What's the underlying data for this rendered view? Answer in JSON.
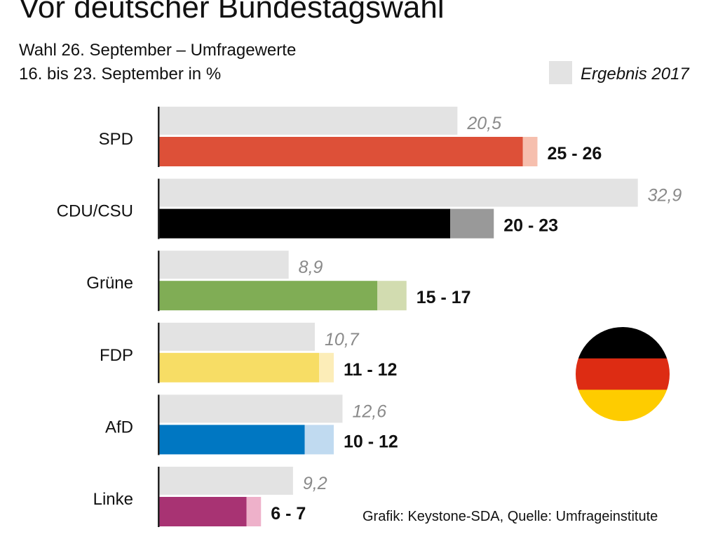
{
  "chart_data": {
    "type": "bar",
    "title": "Vor deutscher Bundestagswahl",
    "subtitle": [
      "Wahl 26. September – Umfragewerte",
      "16. bis 23. September in %"
    ],
    "legend": {
      "label": "Ergebnis 2017",
      "color": "#e3e3e3",
      "placement": "top-right"
    },
    "source": "Grafik: Keystone-SDA, Quelle: Umfrageinstitute",
    "xlim": [
      0,
      33
    ],
    "categories": [
      "SPD",
      "CDU/CSU",
      "Grüne",
      "FDP",
      "AfD",
      "Linke"
    ],
    "result_2017": [
      20.5,
      32.9,
      8.9,
      10.7,
      12.6,
      9.2
    ],
    "result_2017_labels": [
      "20,5",
      "32,9",
      "8,9",
      "10,7",
      "12,6",
      "9,2"
    ],
    "poll_low": [
      25,
      20,
      15,
      11,
      10,
      6
    ],
    "poll_high": [
      26,
      23,
      17,
      12,
      12,
      7
    ],
    "poll_labels": [
      "25 - 26",
      "20 - 23",
      "15 - 17",
      "11 - 12",
      "10 - 12",
      "6 - 7"
    ],
    "colors": [
      "#dd5038",
      "#000000",
      "#80ad55",
      "#f7dd65",
      "#0077c2",
      "#a83373"
    ],
    "range_colors": [
      "#f6bfae",
      "#999999",
      "#d2dcb0",
      "#fcedb8",
      "#c0daf0",
      "#eeb1ca"
    ],
    "flag_colors": [
      "#000000",
      "#dd2c13",
      "#fecc00"
    ]
  }
}
